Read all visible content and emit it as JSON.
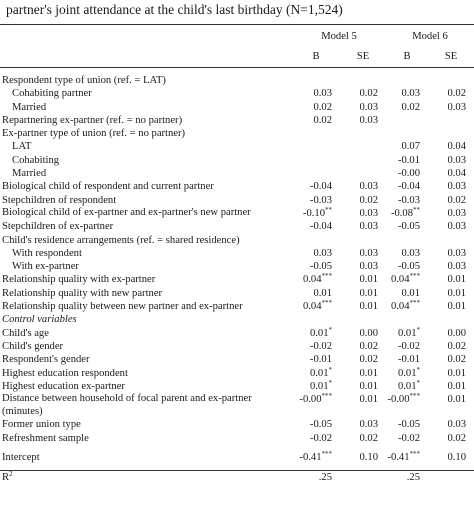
{
  "caption": "partner's joint attendance at the child's last birthday (N=1,524)",
  "header": {
    "model5": "Model 5",
    "model6": "Model 6",
    "b5": "B",
    "se5": "SE",
    "b6": "B",
    "se6": "SE"
  },
  "rows": [
    {
      "label": "Respondent type of union (ref. = LAT)",
      "b5": "",
      "b5s": "",
      "se5": "",
      "b6": "",
      "b6s": "",
      "se6": ""
    },
    {
      "label": "Cohabiting partner",
      "b5": "0.03",
      "b5s": "",
      "se5": "0.02",
      "b6": "0.03",
      "b6s": "",
      "se6": "0.02"
    },
    {
      "label": "Married",
      "b5": "0.02",
      "b5s": "",
      "se5": "0.03",
      "b6": "0.02",
      "b6s": "",
      "se6": "0.03"
    },
    {
      "label": "Repartnering ex-partner (ref. = no partner)",
      "b5": "0.02",
      "b5s": "",
      "se5": "0.03",
      "b6": "",
      "b6s": "",
      "se6": ""
    },
    {
      "label": "Ex-partner type of union (ref. = no partner)",
      "b5": "",
      "b5s": "",
      "se5": "",
      "b6": "",
      "b6s": "",
      "se6": ""
    },
    {
      "label": "LAT",
      "b5": "",
      "b5s": "",
      "se5": "",
      "b6": "0.07",
      "b6s": "",
      "se6": "0.04"
    },
    {
      "label": "Cohabiting",
      "b5": "",
      "b5s": "",
      "se5": "",
      "b6": "-0.01",
      "b6s": "",
      "se6": "0.03"
    },
    {
      "label": "Married",
      "b5": "",
      "b5s": "",
      "se5": "",
      "b6": "-0.00",
      "b6s": "",
      "se6": "0.04"
    },
    {
      "label": "Biological child of respondent and current partner",
      "b5": "-0.04",
      "b5s": "",
      "se5": "0.03",
      "b6": "-0.04",
      "b6s": "",
      "se6": "0.03"
    },
    {
      "label": "Stepchildren of respondent",
      "b5": "-0.03",
      "b5s": "",
      "se5": "0.02",
      "b6": "-0.03",
      "b6s": "",
      "se6": "0.02"
    },
    {
      "label": "Biological child of ex-partner and ex-partner's new partner",
      "b5": "-0.10",
      "b5s": "**",
      "se5": "0.03",
      "b6": "-0.08",
      "b6s": "**",
      "se6": "0.03"
    },
    {
      "label": "Stepchildren of ex-partner",
      "b5": "-0.04",
      "b5s": "",
      "se5": "0.03",
      "b6": "-0.05",
      "b6s": "",
      "se6": "0.03"
    },
    {
      "label": "Child's residence arrangements (ref. = shared residence)",
      "b5": "",
      "b5s": "",
      "se5": "",
      "b6": "",
      "b6s": "",
      "se6": ""
    },
    {
      "label": "With respondent",
      "b5": "0.03",
      "b5s": "",
      "se5": "0.03",
      "b6": "0.03",
      "b6s": "",
      "se6": "0.03"
    },
    {
      "label": "With ex-partner",
      "b5": "-0.05",
      "b5s": "",
      "se5": "0.03",
      "b6": "-0.05",
      "b6s": "",
      "se6": "0.03"
    },
    {
      "label": "Relationship quality with ex-partner",
      "b5": "0.04",
      "b5s": "***",
      "se5": "0.01",
      "b6": "0.04",
      "b6s": "***",
      "se6": "0.01"
    },
    {
      "label": "Relationship quality with new partner",
      "b5": "0.01",
      "b5s": "",
      "se5": "0.01",
      "b6": "0.01",
      "b6s": "",
      "se6": "0.01"
    },
    {
      "label": "Relationship quality between new partner and ex-partner",
      "b5": "0.04",
      "b5s": "***",
      "se5": "0.01",
      "b6": "0.04",
      "b6s": "***",
      "se6": "0.01"
    },
    {
      "label": "Control variables",
      "b5": "",
      "b5s": "",
      "se5": "",
      "b6": "",
      "b6s": "",
      "se6": ""
    },
    {
      "label": "Child's age",
      "b5": "0.01",
      "b5s": "*",
      "se5": "0.00",
      "b6": "0.01",
      "b6s": "*",
      "se6": "0.00"
    },
    {
      "label": "Child's gender",
      "b5": "-0.02",
      "b5s": "",
      "se5": "0.02",
      "b6": "-0.02",
      "b6s": "",
      "se6": "0.02"
    },
    {
      "label": "Respondent's gender",
      "b5": "-0.01",
      "b5s": "",
      "se5": "0.02",
      "b6": "-0.01",
      "b6s": "",
      "se6": "0.02"
    },
    {
      "label": "Highest education respondent",
      "b5": "0.01",
      "b5s": "*",
      "se5": "0.01",
      "b6": "0.01",
      "b6s": "*",
      "se6": "0.01"
    },
    {
      "label": "Highest education ex-partner",
      "b5": "0.01",
      "b5s": "*",
      "se5": "0.01",
      "b6": "0.01",
      "b6s": "*",
      "se6": "0.01"
    },
    {
      "label": "Distance between household of focal parent and ex-partner (minutes)",
      "b5": "-0.00",
      "b5s": "***",
      "se5": "0.01",
      "b6": "-0.00",
      "b6s": "***",
      "se6": "0.01"
    },
    {
      "label": "Former union type",
      "b5": "-0.05",
      "b5s": "",
      "se5": "0.03",
      "b6": "-0.05",
      "b6s": "",
      "se6": "0.03"
    },
    {
      "label": "Refreshment sample",
      "b5": "-0.02",
      "b5s": "",
      "se5": "0.02",
      "b6": "-0.02",
      "b6s": "",
      "se6": "0.02"
    },
    {
      "label": "Intercept",
      "b5": "-0.41",
      "b5s": "***",
      "se5": "0.10",
      "b6": "-0.41",
      "b6s": "***",
      "se6": "0.10"
    },
    {
      "label": "R",
      "label_sup": "2",
      "b5": ".25",
      "b5s": "",
      "se5": "",
      "b6": ".25",
      "b6s": "",
      "se6": ""
    }
  ]
}
